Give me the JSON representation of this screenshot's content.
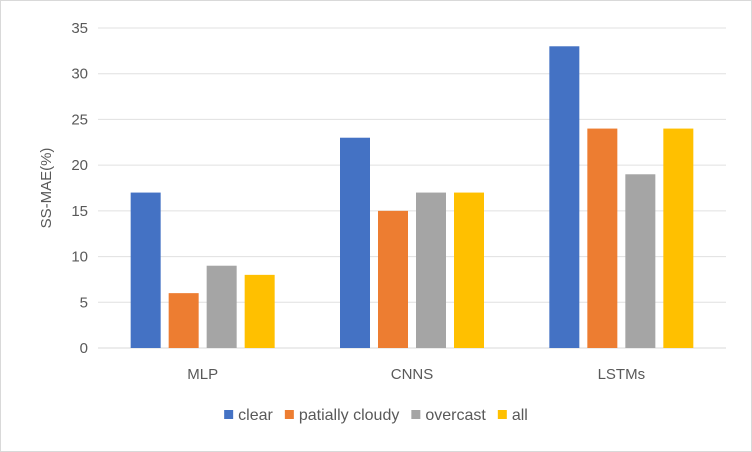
{
  "chart_data": {
    "type": "bar",
    "title": "",
    "xlabel": "",
    "ylabel": "SS-MAE(%)",
    "categories": [
      "MLP",
      "CNNS",
      "LSTMs"
    ],
    "series": [
      {
        "name": "clear",
        "color": "#4472c4",
        "values": [
          17,
          23,
          33
        ]
      },
      {
        "name": "patially cloudy",
        "color": "#ed7d31",
        "values": [
          6,
          15,
          24
        ]
      },
      {
        "name": "overcast",
        "color": "#a5a5a5",
        "values": [
          9,
          17,
          19
        ]
      },
      {
        "name": "all",
        "color": "#ffc000",
        "values": [
          8,
          17,
          24
        ]
      }
    ],
    "ylim": [
      0,
      35
    ],
    "yticks": [
      "0",
      "5",
      "10",
      "15",
      "20",
      "25",
      "30",
      "35"
    ],
    "grid": true,
    "legend_position": "bottom"
  }
}
